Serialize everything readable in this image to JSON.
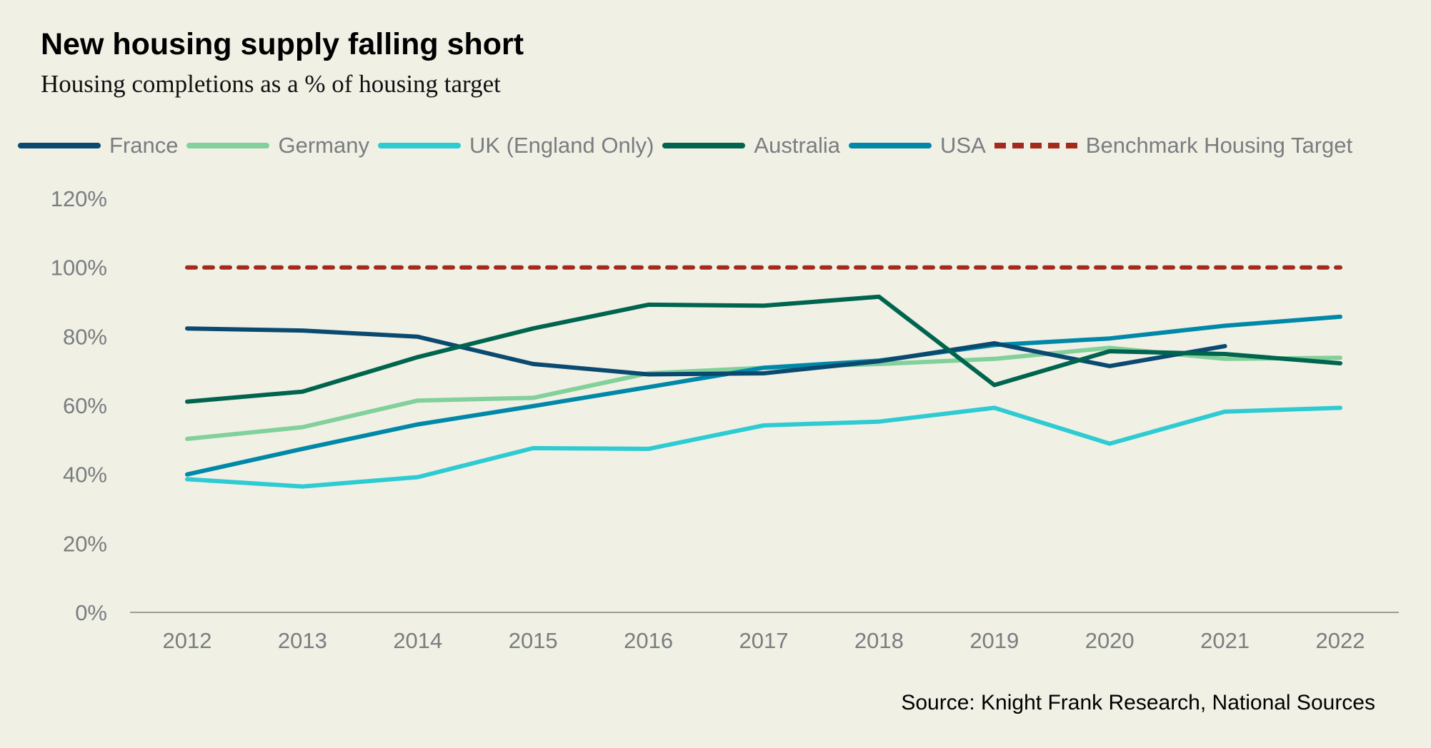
{
  "chart_data": {
    "type": "line",
    "title": "New housing supply falling short",
    "subtitle": "Housing completions as a % of housing target",
    "xlabel": "",
    "ylabel": "",
    "x": [
      "2012",
      "2013",
      "2014",
      "2015",
      "2016",
      "2017",
      "2018",
      "2019",
      "2020",
      "2021",
      "2022"
    ],
    "yticks": [
      "0%",
      "20%",
      "40%",
      "60%",
      "80%",
      "100%",
      "120%"
    ],
    "ylim": [
      0,
      120
    ],
    "grid": false,
    "legend_position": "top",
    "series": [
      {
        "name": "France",
        "color": "#0b4a70",
        "dashed": false,
        "values": [
          82.3,
          81.7,
          79.9,
          72.0,
          69.0,
          69.3,
          72.8,
          78.0,
          71.4,
          77.2,
          null
        ]
      },
      {
        "name": "Germany",
        "color": "#82d09a",
        "dashed": false,
        "values": [
          50.3,
          53.7,
          61.4,
          62.2,
          69.3,
          70.9,
          72.0,
          73.5,
          76.7,
          73.5,
          73.8
        ]
      },
      {
        "name": "UK (England Only)",
        "color": "#2ecbd2",
        "dashed": false,
        "values": [
          38.6,
          36.5,
          39.2,
          47.6,
          47.4,
          54.2,
          55.3,
          59.3,
          48.9,
          58.2,
          59.3
        ]
      },
      {
        "name": "Australia",
        "color": "#00644e",
        "dashed": false,
        "values": [
          61.1,
          64.0,
          74.0,
          82.3,
          89.2,
          88.9,
          91.5,
          65.9,
          75.7,
          74.9,
          72.2
        ]
      },
      {
        "name": "USA",
        "color": "#0088a8",
        "dashed": false,
        "values": [
          40.0,
          47.4,
          54.5,
          59.8,
          65.3,
          70.9,
          73.0,
          77.5,
          79.4,
          83.1,
          85.7
        ]
      },
      {
        "name": "Benchmark Housing Target",
        "color": "#a52a1e",
        "dashed": true,
        "values": [
          100,
          100,
          100,
          100,
          100,
          100,
          100,
          100,
          100,
          100,
          100
        ]
      }
    ]
  },
  "source": "Source: Knight Frank Research, National Sources"
}
